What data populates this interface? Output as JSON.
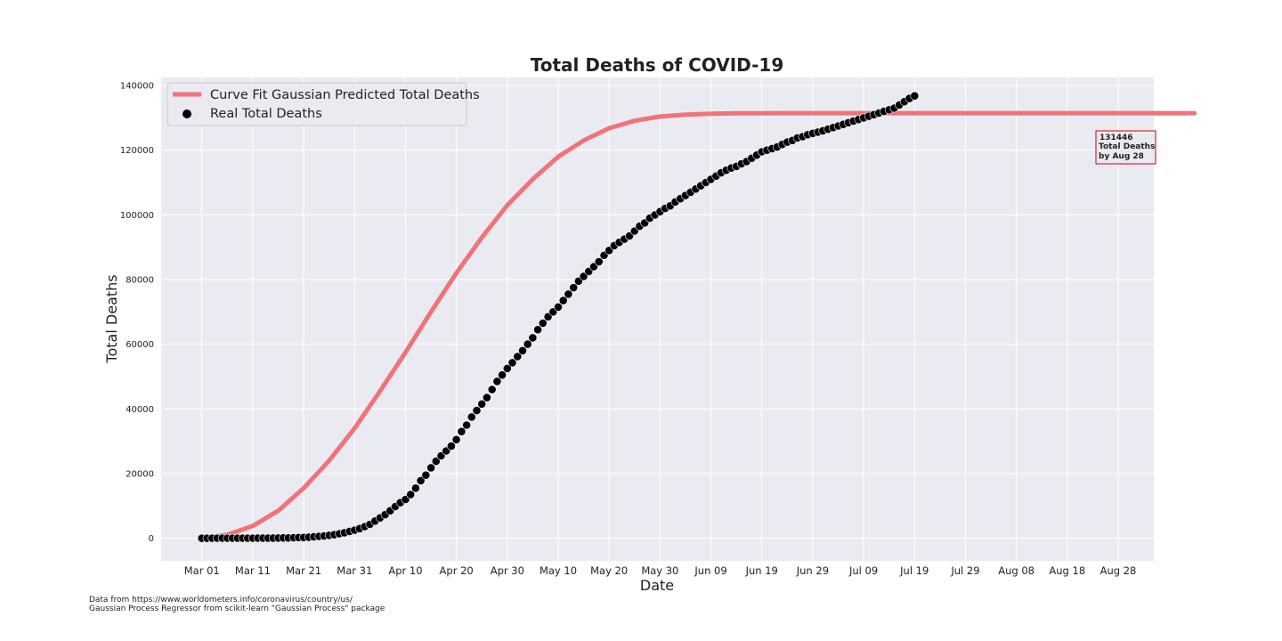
{
  "chart_data": {
    "type": "line",
    "title": "Total Deaths of COVID-19",
    "xlabel": "Date",
    "ylabel": "Total Deaths",
    "x_axis": {
      "range": [
        "2020-02-22",
        "2020-09-04"
      ],
      "tick_dates": [
        "2020-03-01",
        "2020-03-11",
        "2020-03-21",
        "2020-03-31",
        "2020-04-10",
        "2020-04-20",
        "2020-04-30",
        "2020-05-10",
        "2020-05-20",
        "2020-05-30",
        "2020-06-09",
        "2020-06-19",
        "2020-06-29",
        "2020-07-09",
        "2020-07-19",
        "2020-07-29",
        "2020-08-08",
        "2020-08-18",
        "2020-08-28"
      ],
      "tick_labels": [
        "Mar 01",
        "Mar 11",
        "Mar 21",
        "Mar 31",
        "Apr 10",
        "Apr 20",
        "Apr 30",
        "May 10",
        "May 20",
        "May 30",
        "Jun 09",
        "Jun 19",
        "Jun 29",
        "Jul 09",
        "Jul 19",
        "Jul 29",
        "Aug 08",
        "Aug 18",
        "Aug 28"
      ]
    },
    "y_axis": {
      "range": [
        -7000,
        142500
      ],
      "ticks": [
        0,
        20000,
        40000,
        60000,
        80000,
        100000,
        120000,
        140000
      ],
      "tick_labels": [
        "0",
        "20000",
        "40000",
        "60000",
        "80000",
        "100000",
        "120000",
        "140000"
      ]
    },
    "grid": true,
    "legend": "top-left",
    "series": [
      {
        "name": "Curve Fit Gaussian Predicted Total Deaths",
        "kind": "line",
        "color": "#f07378",
        "start_date": "2020-03-01",
        "step_days": 5,
        "values": [
          0,
          1100,
          3800,
          8500,
          15500,
          24000,
          34000,
          45500,
          57500,
          70000,
          82000,
          93000,
          103000,
          111000,
          118000,
          123000,
          126800,
          129100,
          130400,
          131000,
          131300,
          131400,
          131440,
          131446,
          131446,
          131446,
          131446,
          131446,
          131446,
          131446,
          131446,
          131446,
          131446,
          131446,
          131446,
          131446,
          131446,
          131446,
          131446,
          131446
        ]
      },
      {
        "name": "Real Total Deaths",
        "kind": "scatter",
        "color": "#000000",
        "start_date": "2020-03-01",
        "step_days": 1,
        "values": [
          0,
          0,
          10,
          10,
          10,
          20,
          20,
          20,
          20,
          20,
          30,
          40,
          40,
          50,
          60,
          70,
          90,
          110,
          150,
          200,
          250,
          330,
          450,
          560,
          700,
          900,
          1100,
          1400,
          1700,
          2100,
          2500,
          3000,
          3600,
          4300,
          5300,
          6300,
          7300,
          8500,
          9800,
          11000,
          12000,
          13500,
          15500,
          17800,
          19500,
          21800,
          23800,
          25500,
          27000,
          28500,
          30500,
          33000,
          35000,
          37500,
          39500,
          41500,
          43500,
          46000,
          48500,
          50500,
          52500,
          54300,
          56200,
          58000,
          60000,
          62000,
          64500,
          66500,
          68500,
          70000,
          71500,
          73500,
          75500,
          77500,
          79500,
          81000,
          82500,
          84000,
          85500,
          87500,
          89000,
          90500,
          91500,
          92500,
          93500,
          95000,
          96500,
          97500,
          99000,
          100000,
          101000,
          102000,
          102800,
          104000,
          105000,
          106000,
          107000,
          108000,
          109000,
          110000,
          111000,
          112000,
          113000,
          113800,
          114500,
          115000,
          115800,
          116500,
          117500,
          118500,
          119500,
          120000,
          120500,
          121000,
          121800,
          122500,
          123000,
          123800,
          124200,
          124800,
          125200,
          125600,
          126000,
          126500,
          127000,
          127500,
          128000,
          128500,
          129000,
          129500,
          130000,
          130500,
          131000,
          131500,
          132000,
          132500,
          133000,
          134000,
          135000,
          136000,
          136800
        ]
      }
    ],
    "annotation": {
      "lines": [
        "131446",
        "Total Deaths",
        "by Aug 28"
      ],
      "border_color": "#cc0000"
    }
  },
  "footnotes": [
    "Data from https://www.worldometers.info/coronavirus/country/us/",
    "Gaussian Process Regressor from scikit-learn \"Gaussian Process\" package"
  ]
}
